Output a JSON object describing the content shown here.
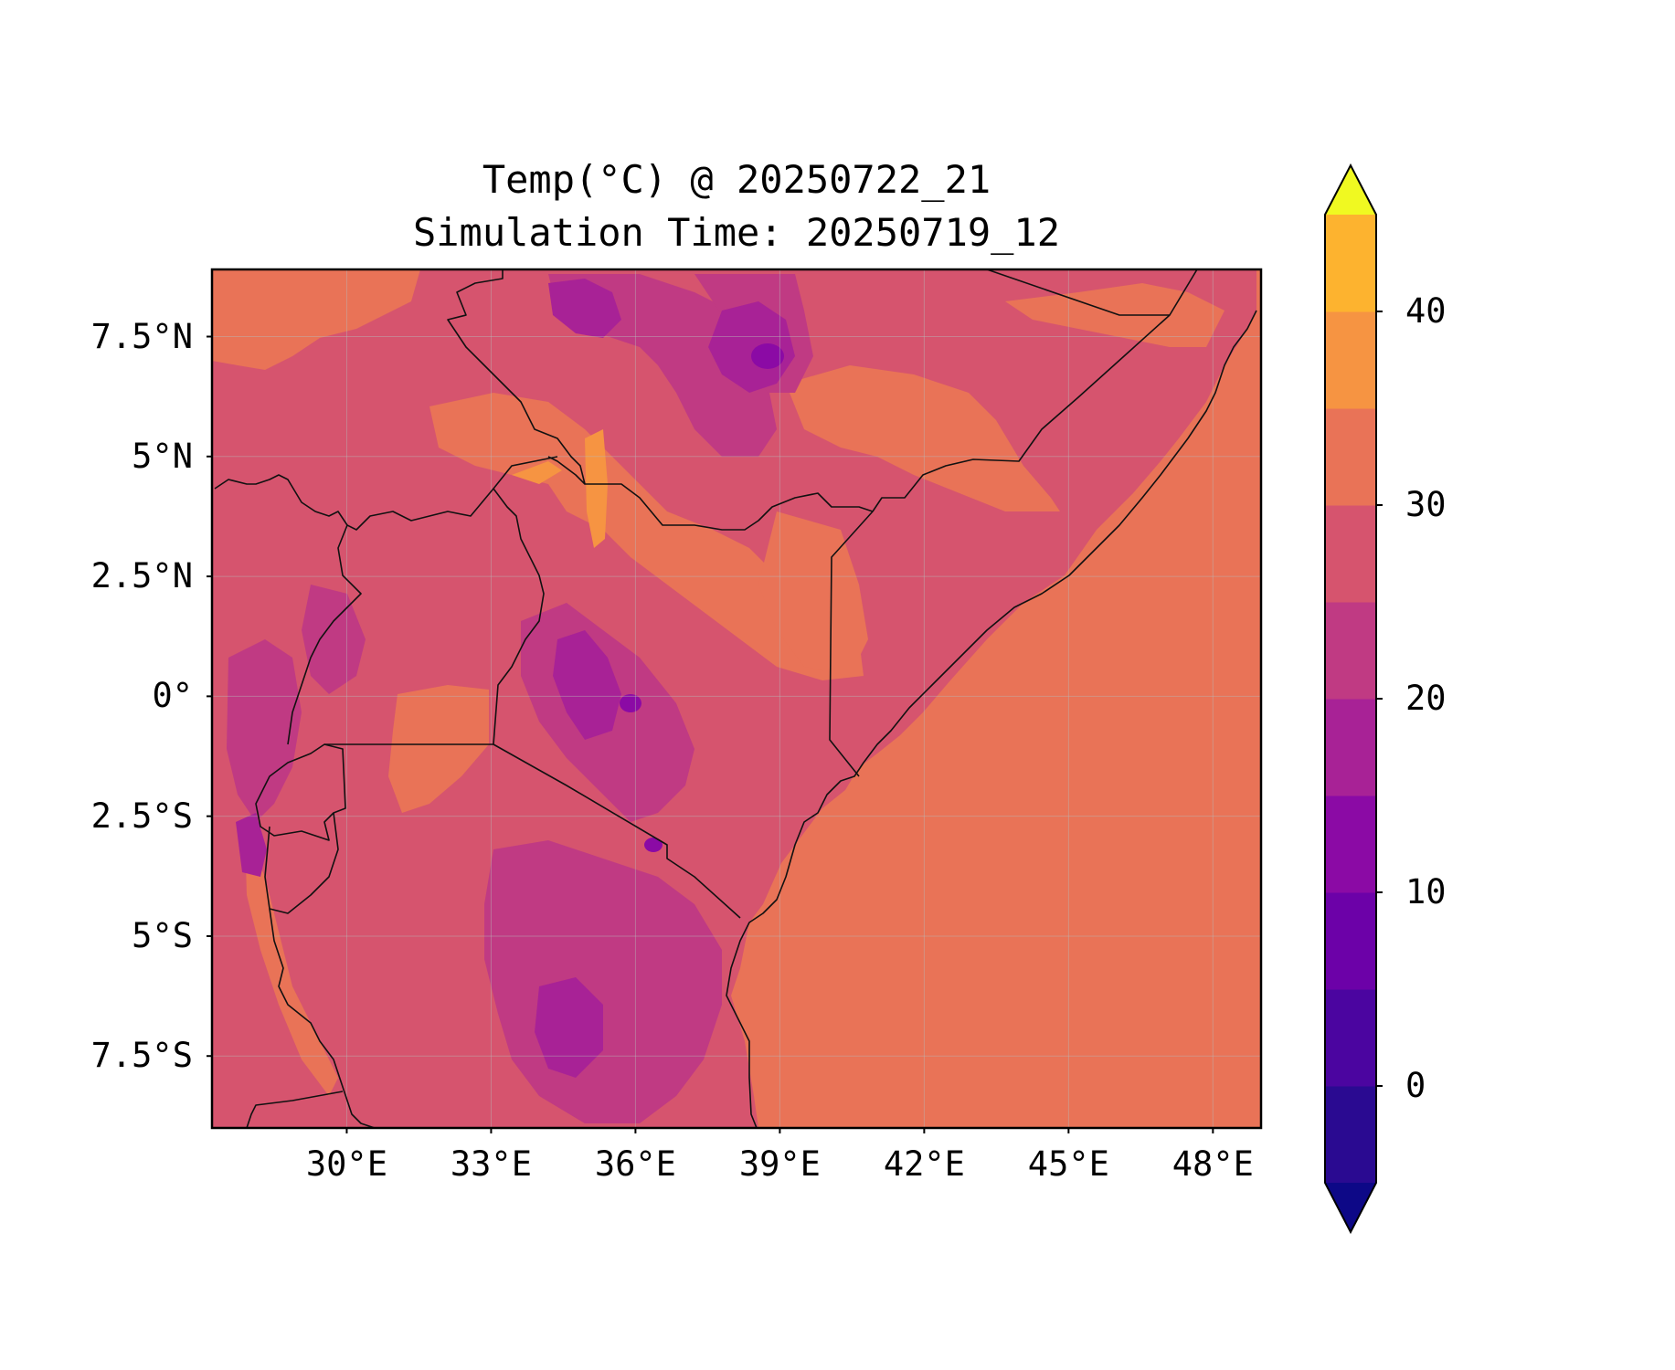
{
  "title": {
    "line1": "Temp(°C) @ 20250722_21",
    "line2": "Simulation Time: 20250719_12"
  },
  "map": {
    "lon_range": [
      27.2,
      49.0
    ],
    "lat_range": [
      -9.0,
      8.9
    ],
    "y_ticks": [
      {
        "lat": 7.5,
        "label": "7.5°N"
      },
      {
        "lat": 5,
        "label": "5°N"
      },
      {
        "lat": 2.5,
        "label": "2.5°N"
      },
      {
        "lat": 0,
        "label": "0°"
      },
      {
        "lat": -2.5,
        "label": "2.5°S"
      },
      {
        "lat": -5,
        "label": "5°S"
      },
      {
        "lat": -7.5,
        "label": "7.5°S"
      }
    ],
    "x_ticks": [
      {
        "lon": 30,
        "label": "30°E"
      },
      {
        "lon": 33,
        "label": "33°E"
      },
      {
        "lon": 36,
        "label": "36°E"
      },
      {
        "lon": 39,
        "label": "39°E"
      },
      {
        "lon": 42,
        "label": "42°E"
      },
      {
        "lon": 45,
        "label": "45°E"
      },
      {
        "lon": 48,
        "label": "48°E"
      }
    ],
    "gridlines": true,
    "ocean_color": "#e97357",
    "land_base_color": "#d6546e"
  },
  "colorbar": {
    "levels": [
      -5,
      0,
      5,
      10,
      15,
      20,
      25,
      30,
      35,
      40,
      45
    ],
    "colors": [
      "#2a0a91",
      "#4b05a0",
      "#6c01a8",
      "#8b0aa5",
      "#a82296",
      "#c03a83",
      "#d6546e",
      "#e97357",
      "#f69442",
      "#fdb32f",
      "#f5e627"
    ],
    "extend_min_color": "#0d0887",
    "extend_max_color": "#f0f921",
    "tick_labels": [
      {
        "value": 0,
        "label": "0"
      },
      {
        "value": 10,
        "label": "10"
      },
      {
        "value": 20,
        "label": "20"
      },
      {
        "value": 30,
        "label": "30"
      },
      {
        "value": 40,
        "label": "40"
      }
    ],
    "units": "°C"
  }
}
